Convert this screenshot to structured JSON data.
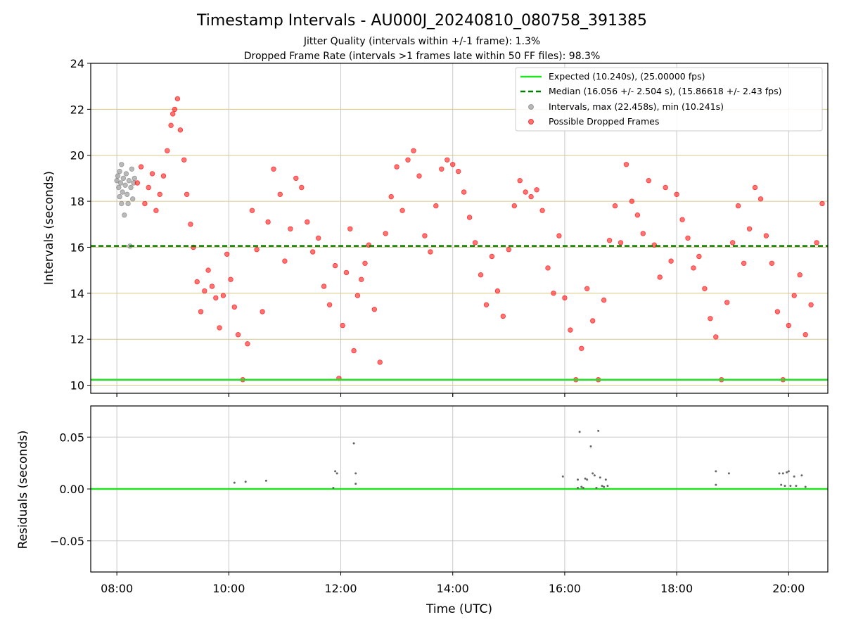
{
  "title": "Timestamp Intervals - AU000J_20240810_080758_391385",
  "subtitle1": "Jitter Quality (intervals within +/-1 frame): 1.3%",
  "subtitle2": "Dropped Frame Rate (intervals >1 frames late within 50 FF files): 98.3%",
  "colors": {
    "expected": "#22e022",
    "median": "#007a00",
    "intervals": "#808080",
    "dropped": "#ff0000",
    "hgrid_top": "#d8c88a",
    "grid": "#c8c8c8"
  },
  "chart_data": [
    {
      "type": "scatter",
      "ylabel": "Intervals (seconds)",
      "ylim": [
        9.65,
        24
      ],
      "yticks": [
        10,
        12,
        14,
        16,
        18,
        20,
        22,
        24
      ],
      "xlim": [
        "07:32",
        "20:42"
      ],
      "xticks": [
        "08:00",
        "10:00",
        "12:00",
        "14:00",
        "16:00",
        "18:00",
        "20:00"
      ],
      "grid": true,
      "legend_position": "top-right",
      "expected": {
        "value": 10.24,
        "label": "Expected (10.240s), (25.00000 fps)"
      },
      "median": {
        "value": 16.056,
        "label": "Median (16.056 +/- 2.504 s), (15.86618 +/- 2.43 fps)"
      },
      "series": [
        {
          "name": "Intervals, max (22.458s), min (10.241s)",
          "points": [
            [
              "08:00",
              18.9
            ],
            [
              "08:01",
              19.1
            ],
            [
              "08:02",
              18.6
            ],
            [
              "08:03",
              19.3
            ],
            [
              "08:03",
              18.2
            ],
            [
              "08:04",
              18.8
            ],
            [
              "08:05",
              19.6
            ],
            [
              "08:05",
              17.9
            ],
            [
              "08:06",
              18.4
            ],
            [
              "08:07",
              19.0
            ],
            [
              "08:08",
              17.4
            ],
            [
              "08:09",
              18.7
            ],
            [
              "08:10",
              19.2
            ],
            [
              "08:11",
              18.3
            ],
            [
              "08:12",
              17.9
            ],
            [
              "08:13",
              18.9
            ],
            [
              "08:14",
              16.05
            ],
            [
              "08:15",
              18.6
            ],
            [
              "08:16",
              19.4
            ],
            [
              "08:17",
              18.1
            ],
            [
              "08:18",
              18.8
            ],
            [
              "08:19",
              19.0
            ]
          ]
        },
        {
          "name": "Possible Dropped Frames",
          "points": [
            [
              "08:22",
              18.8
            ],
            [
              "08:26",
              19.5
            ],
            [
              "08:30",
              17.9
            ],
            [
              "08:34",
              18.6
            ],
            [
              "08:38",
              19.2
            ],
            [
              "08:42",
              17.6
            ],
            [
              "08:46",
              18.3
            ],
            [
              "08:50",
              19.1
            ],
            [
              "08:54",
              20.2
            ],
            [
              "08:58",
              21.3
            ],
            [
              "09:00",
              21.8
            ],
            [
              "09:02",
              22.0
            ],
            [
              "09:05",
              22.458
            ],
            [
              "09:08",
              21.1
            ],
            [
              "09:12",
              19.8
            ],
            [
              "09:15",
              18.3
            ],
            [
              "09:19",
              17.0
            ],
            [
              "09:22",
              16.0
            ],
            [
              "09:26",
              14.5
            ],
            [
              "09:30",
              13.2
            ],
            [
              "09:34",
              14.1
            ],
            [
              "09:38",
              15.0
            ],
            [
              "09:42",
              14.3
            ],
            [
              "09:46",
              13.8
            ],
            [
              "09:50",
              12.5
            ],
            [
              "09:54",
              13.9
            ],
            [
              "09:58",
              15.7
            ],
            [
              "10:02",
              14.6
            ],
            [
              "10:06",
              13.4
            ],
            [
              "10:10",
              12.2
            ],
            [
              "10:15",
              10.24
            ],
            [
              "10:20",
              11.8
            ],
            [
              "10:25",
              17.6
            ],
            [
              "10:30",
              15.9
            ],
            [
              "10:36",
              13.2
            ],
            [
              "10:42",
              17.1
            ],
            [
              "10:48",
              19.4
            ],
            [
              "10:55",
              18.3
            ],
            [
              "11:00",
              15.4
            ],
            [
              "11:06",
              16.8
            ],
            [
              "11:12",
              19.0
            ],
            [
              "11:18",
              18.6
            ],
            [
              "11:24",
              17.1
            ],
            [
              "11:30",
              15.8
            ],
            [
              "11:36",
              16.4
            ],
            [
              "11:42",
              14.3
            ],
            [
              "11:48",
              13.5
            ],
            [
              "11:54",
              15.2
            ],
            [
              "11:58",
              10.3
            ],
            [
              "12:02",
              12.6
            ],
            [
              "12:06",
              14.9
            ],
            [
              "12:10",
              16.8
            ],
            [
              "12:14",
              11.5
            ],
            [
              "12:18",
              13.9
            ],
            [
              "12:22",
              14.6
            ],
            [
              "12:26",
              15.3
            ],
            [
              "12:30",
              16.1
            ],
            [
              "12:36",
              13.3
            ],
            [
              "12:42",
              11.0
            ],
            [
              "12:48",
              16.6
            ],
            [
              "12:54",
              18.2
            ],
            [
              "13:00",
              19.5
            ],
            [
              "13:06",
              17.6
            ],
            [
              "13:12",
              19.8
            ],
            [
              "13:18",
              20.2
            ],
            [
              "13:24",
              19.1
            ],
            [
              "13:30",
              16.5
            ],
            [
              "13:36",
              15.8
            ],
            [
              "13:42",
              17.8
            ],
            [
              "13:48",
              19.4
            ],
            [
              "13:54",
              19.8
            ],
            [
              "14:00",
              19.6
            ],
            [
              "14:06",
              19.3
            ],
            [
              "14:12",
              18.4
            ],
            [
              "14:18",
              17.3
            ],
            [
              "14:24",
              16.2
            ],
            [
              "14:30",
              14.8
            ],
            [
              "14:36",
              13.5
            ],
            [
              "14:42",
              15.6
            ],
            [
              "14:48",
              14.1
            ],
            [
              "14:54",
              13.0
            ],
            [
              "15:00",
              15.9
            ],
            [
              "15:06",
              17.8
            ],
            [
              "15:12",
              18.9
            ],
            [
              "15:18",
              18.4
            ],
            [
              "15:24",
              18.2
            ],
            [
              "15:30",
              18.5
            ],
            [
              "15:36",
              17.6
            ],
            [
              "15:42",
              15.1
            ],
            [
              "15:48",
              14.0
            ],
            [
              "15:54",
              16.5
            ],
            [
              "16:00",
              13.8
            ],
            [
              "16:06",
              12.4
            ],
            [
              "16:12",
              10.24
            ],
            [
              "16:18",
              11.6
            ],
            [
              "16:24",
              14.2
            ],
            [
              "16:30",
              12.8
            ],
            [
              "16:36",
              10.24
            ],
            [
              "16:42",
              13.7
            ],
            [
              "16:48",
              16.3
            ],
            [
              "16:54",
              17.8
            ],
            [
              "17:00",
              16.2
            ],
            [
              "17:06",
              19.6
            ],
            [
              "17:12",
              18.0
            ],
            [
              "17:18",
              17.4
            ],
            [
              "17:24",
              16.6
            ],
            [
              "17:30",
              18.9
            ],
            [
              "17:36",
              16.1
            ],
            [
              "17:42",
              14.7
            ],
            [
              "17:48",
              18.6
            ],
            [
              "17:54",
              15.4
            ],
            [
              "18:00",
              18.3
            ],
            [
              "18:06",
              17.2
            ],
            [
              "18:12",
              16.4
            ],
            [
              "18:18",
              15.1
            ],
            [
              "18:24",
              15.6
            ],
            [
              "18:30",
              14.2
            ],
            [
              "18:36",
              12.9
            ],
            [
              "18:42",
              12.1
            ],
            [
              "18:48",
              10.24
            ],
            [
              "18:54",
              13.6
            ],
            [
              "19:00",
              16.2
            ],
            [
              "19:06",
              17.8
            ],
            [
              "19:12",
              15.3
            ],
            [
              "19:18",
              16.8
            ],
            [
              "19:24",
              18.6
            ],
            [
              "19:30",
              18.1
            ],
            [
              "19:36",
              16.5
            ],
            [
              "19:42",
              15.3
            ],
            [
              "19:48",
              13.2
            ],
            [
              "19:54",
              10.24
            ],
            [
              "20:00",
              12.6
            ],
            [
              "20:06",
              13.9
            ],
            [
              "20:12",
              14.8
            ],
            [
              "20:18",
              12.2
            ],
            [
              "20:24",
              13.5
            ],
            [
              "20:30",
              16.2
            ],
            [
              "20:36",
              17.9
            ]
          ]
        }
      ]
    },
    {
      "type": "scatter",
      "ylabel": "Residuals (seconds)",
      "xlabel": "Time (UTC)",
      "ylim": [
        -0.08,
        0.08
      ],
      "yticks_values": [
        -0.05,
        0.0,
        0.05
      ],
      "yticks": [
        "−0.05",
        "0.00",
        "0.05"
      ],
      "xlim": [
        "07:32",
        "20:42"
      ],
      "xticks": [
        "08:00",
        "10:00",
        "12:00",
        "14:00",
        "16:00",
        "18:00",
        "20:00"
      ],
      "grid": true,
      "zero_line": 0.0,
      "points": [
        [
          "10:06",
          0.006
        ],
        [
          "10:18",
          0.007
        ],
        [
          "10:40",
          0.008
        ],
        [
          "11:52",
          0.001
        ],
        [
          "11:54",
          0.017
        ],
        [
          "11:56",
          0.015
        ],
        [
          "12:14",
          0.044
        ],
        [
          "12:16",
          0.015
        ],
        [
          "12:16",
          0.005
        ],
        [
          "15:58",
          0.012
        ],
        [
          "16:14",
          0.009
        ],
        [
          "16:14",
          0.001
        ],
        [
          "16:16",
          0.055
        ],
        [
          "16:18",
          0.002
        ],
        [
          "16:20",
          0.001
        ],
        [
          "16:22",
          0.01
        ],
        [
          "16:24",
          0.009
        ],
        [
          "16:28",
          0.041
        ],
        [
          "16:30",
          0.015
        ],
        [
          "16:32",
          0.013
        ],
        [
          "16:34",
          0.001
        ],
        [
          "16:36",
          0.056
        ],
        [
          "16:38",
          0.011
        ],
        [
          "16:40",
          0.003
        ],
        [
          "16:42",
          0.002
        ],
        [
          "16:44",
          0.009
        ],
        [
          "16:46",
          0.003
        ],
        [
          "18:42",
          0.017
        ],
        [
          "18:42",
          0.004
        ],
        [
          "18:56",
          0.015
        ],
        [
          "19:50",
          0.015
        ],
        [
          "19:52",
          0.004
        ],
        [
          "19:54",
          0.015
        ],
        [
          "19:56",
          0.003
        ],
        [
          "19:58",
          0.016
        ],
        [
          "20:00",
          0.017
        ],
        [
          "20:02",
          0.003
        ],
        [
          "20:06",
          0.012
        ],
        [
          "20:08",
          0.003
        ],
        [
          "20:14",
          0.013
        ],
        [
          "20:18",
          0.002
        ]
      ]
    }
  ]
}
